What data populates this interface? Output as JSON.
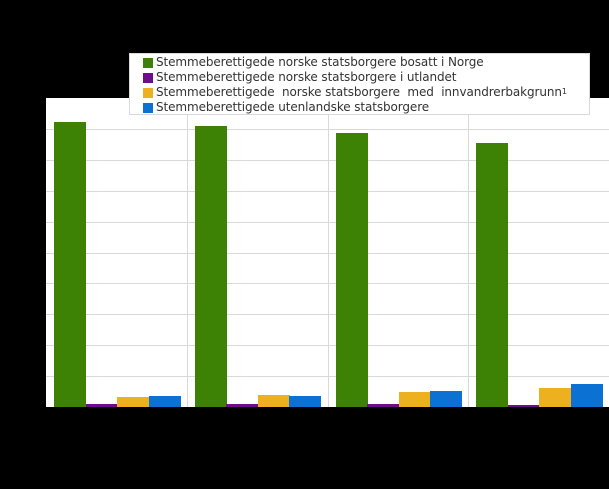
{
  "chart_data": {
    "type": "bar",
    "title": "",
    "xlabel": "",
    "ylabel": "",
    "note": "Axis tick labels are not visible in the screenshot (rendered black on black); values are expressed in gridline units (distance between adjacent horizontal gridlines = 1).",
    "categories": [
      "",
      "",
      "",
      ""
    ],
    "ylim": [
      0,
      10
    ],
    "gridlines": 10,
    "grid": true,
    "legend_position": "top",
    "series": [
      {
        "name": "Stemmeberettigede norske statsborgere bosatt i Norge",
        "color": "#3d8205",
        "values": [
          9.21,
          9.11,
          8.87,
          8.53
        ]
      },
      {
        "name": "Stemmeberettigede norske statsborgere i utlandet",
        "color": "#6e0c8c",
        "values": [
          0.11,
          0.11,
          0.11,
          0.08
        ]
      },
      {
        "name": "Stemmeberettigede norske statsborgere med innvandrerbakgrunn",
        "superscript": "1",
        "color": "#edb11f",
        "values": [
          0.31,
          0.4,
          0.5,
          0.6
        ]
      },
      {
        "name": "Stemmeberettigede utenlandske statsborgere",
        "color": "#0b72d3",
        "values": [
          0.34,
          0.37,
          0.53,
          0.76
        ]
      }
    ]
  },
  "legend": {
    "items": [
      {
        "label": "Stemmeberettigede norske statsborgere bosatt i Norge",
        "sup": ""
      },
      {
        "label": "Stemmeberettigede norske statsborgere i utlandet",
        "sup": ""
      },
      {
        "label": "Stemmeberettigede  norske statsborgere  med  innvandrerbakgrunn",
        "sup": "1"
      },
      {
        "label": "Stemmeberettigede utenlandske statsborgere",
        "sup": ""
      }
    ]
  }
}
